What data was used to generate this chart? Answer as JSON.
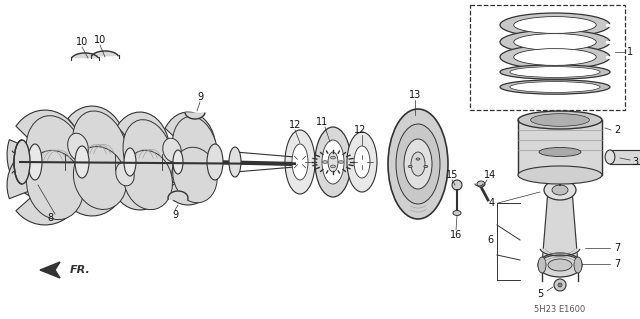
{
  "bg_color": "#ffffff",
  "line_color": "#333333",
  "figure_width": 6.4,
  "figure_height": 3.19,
  "dpi": 100,
  "diagram_note": "5H23 E1600"
}
